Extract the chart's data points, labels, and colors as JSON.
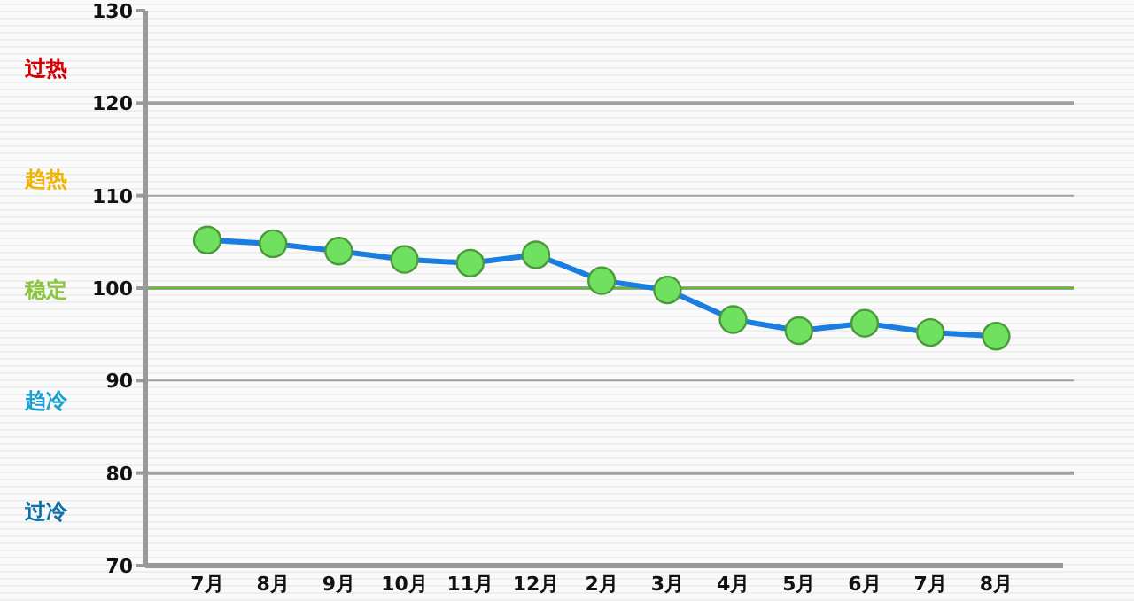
{
  "chart_data": {
    "type": "line",
    "categories": [
      "7月",
      "8月",
      "9月",
      "10月",
      "11月",
      "12月",
      "2月",
      "3月",
      "4月",
      "5月",
      "6月",
      "7月",
      "8月"
    ],
    "series": [
      {
        "color": "#1a7ee0",
        "values": [
          105.2,
          104.8,
          104.0,
          103.1,
          102.7,
          103.6,
          100.8,
          99.8,
          96.6,
          95.4,
          96.2,
          95.2,
          94.8
        ]
      }
    ],
    "ylim": [
      70,
      130
    ],
    "yticks": [
      70,
      80,
      90,
      100,
      110,
      120,
      130
    ],
    "grid": "y",
    "marker": "circle",
    "line_style": "solid",
    "ref_lines": [
      {
        "axis": "y",
        "value": 100,
        "color": "#5cbf2a"
      }
    ],
    "annotations": [
      "过热",
      "趋热",
      "稳定",
      "趋冷",
      "过冷"
    ]
  }
}
